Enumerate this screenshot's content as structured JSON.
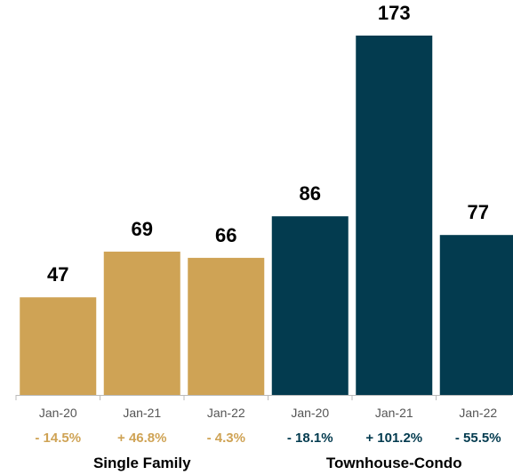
{
  "chart_data": {
    "type": "bar",
    "title": "",
    "xlabel": "",
    "ylabel": "",
    "ylim": [
      0,
      173
    ],
    "grid": false,
    "legend": "none",
    "groups": [
      {
        "name": "Single Family",
        "color": "#cfa355",
        "categories": [
          "Jan-20",
          "Jan-21",
          "Jan-22"
        ],
        "values": [
          47,
          69,
          66
        ],
        "changes": [
          "- 14.5%",
          "+ 46.8%",
          "- 4.3%"
        ]
      },
      {
        "name": "Townhouse-Condo",
        "color": "#033b4f",
        "categories": [
          "Jan-20",
          "Jan-21",
          "Jan-22"
        ],
        "values": [
          86,
          173,
          77
        ],
        "changes": [
          "- 18.1%",
          "+ 101.2%",
          "- 55.5%"
        ]
      }
    ]
  }
}
